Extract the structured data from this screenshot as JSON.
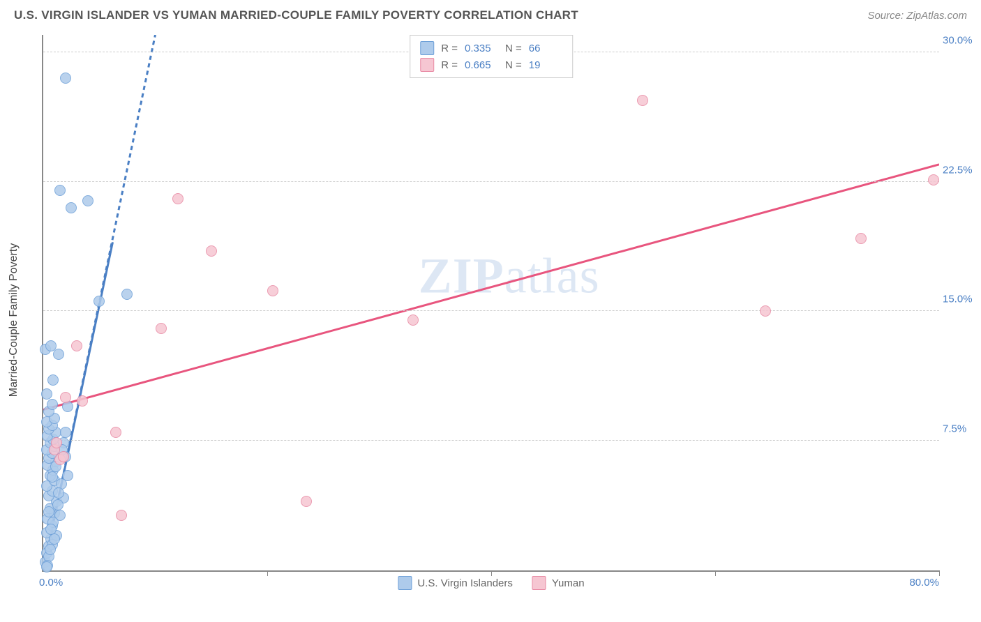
{
  "title": "U.S. VIRGIN ISLANDER VS YUMAN MARRIED-COUPLE FAMILY POVERTY CORRELATION CHART",
  "source": "Source: ZipAtlas.com",
  "ylabel": "Married-Couple Family Poverty",
  "watermark_a": "ZIP",
  "watermark_b": "atlas",
  "chart": {
    "type": "scatter",
    "xlim": [
      0,
      80
    ],
    "ylim": [
      0,
      31
    ],
    "xticks_label_left": "0.0%",
    "xticks_label_right": "80.0%",
    "xticks_marks": [
      20,
      40,
      60,
      80
    ],
    "yticks": [
      7.5,
      15.0,
      22.5,
      30.0
    ],
    "ytick_labels": [
      "7.5%",
      "15.0%",
      "22.5%",
      "30.0%"
    ],
    "grid_color": "#cccccc",
    "series": [
      {
        "name": "U.S. Virgin Islanders",
        "color_fill": "#aecbeb",
        "color_stroke": "#6ea0d8",
        "marker_size": 14,
        "R": "0.335",
        "N": "66",
        "trend": {
          "x1": 0,
          "y1": 0,
          "x2": 10,
          "y2": 31,
          "dash": true,
          "solid_end_x": 6.2,
          "solid_end_y": 19,
          "color": "#4a7fc4",
          "width": 3
        },
        "points": [
          [
            0.2,
            0.5
          ],
          [
            0.3,
            1.0
          ],
          [
            0.5,
            1.4
          ],
          [
            0.7,
            1.8
          ],
          [
            0.3,
            2.2
          ],
          [
            0.8,
            2.6
          ],
          [
            0.4,
            3.0
          ],
          [
            1.0,
            3.3
          ],
          [
            0.6,
            3.6
          ],
          [
            1.2,
            4.0
          ],
          [
            0.5,
            4.3
          ],
          [
            0.8,
            4.6
          ],
          [
            0.3,
            4.9
          ],
          [
            1.0,
            5.2
          ],
          [
            0.6,
            5.5
          ],
          [
            0.9,
            5.8
          ],
          [
            0.4,
            6.1
          ],
          [
            1.1,
            6.3
          ],
          [
            0.5,
            6.5
          ],
          [
            0.8,
            6.8
          ],
          [
            0.3,
            7.0
          ],
          [
            1.0,
            7.2
          ],
          [
            0.6,
            7.4
          ],
          [
            0.9,
            7.6
          ],
          [
            0.4,
            7.8
          ],
          [
            1.1,
            8.0
          ],
          [
            0.5,
            8.2
          ],
          [
            0.8,
            8.4
          ],
          [
            0.3,
            8.6
          ],
          [
            1.0,
            8.8
          ],
          [
            0.5,
            9.2
          ],
          [
            0.8,
            9.6
          ],
          [
            0.3,
            10.2
          ],
          [
            0.9,
            11.0
          ],
          [
            1.4,
            12.5
          ],
          [
            0.2,
            12.8
          ],
          [
            0.7,
            13.0
          ],
          [
            1.8,
            7.4
          ],
          [
            2.2,
            5.5
          ],
          [
            2.0,
            6.6
          ],
          [
            5.0,
            15.6
          ],
          [
            7.5,
            16.0
          ],
          [
            2.5,
            21.0
          ],
          [
            4.0,
            21.4
          ],
          [
            1.5,
            22.0
          ],
          [
            2.0,
            28.5
          ],
          [
            0.5,
            0.8
          ],
          [
            1.2,
            2.0
          ],
          [
            0.8,
            1.5
          ],
          [
            1.5,
            3.2
          ],
          [
            0.4,
            0.3
          ],
          [
            0.6,
            1.2
          ],
          [
            1.8,
            4.2
          ],
          [
            0.9,
            2.8
          ],
          [
            1.3,
            3.8
          ],
          [
            0.7,
            2.4
          ],
          [
            1.6,
            5.0
          ],
          [
            2.0,
            8.0
          ],
          [
            0.3,
            0.2
          ],
          [
            1.0,
            1.8
          ],
          [
            1.4,
            4.5
          ],
          [
            0.5,
            3.4
          ],
          [
            1.1,
            6.0
          ],
          [
            0.8,
            5.4
          ],
          [
            1.7,
            7.0
          ],
          [
            2.2,
            9.5
          ]
        ]
      },
      {
        "name": "Yuman",
        "color_fill": "#f6c6d2",
        "color_stroke": "#e88aa4",
        "marker_size": 14,
        "R": "0.665",
        "N": "19",
        "trend": {
          "x1": 0,
          "y1": 9.3,
          "x2": 80,
          "y2": 23.5,
          "dash": false,
          "color": "#e8557e",
          "width": 3
        },
        "points": [
          [
            1.5,
            6.4
          ],
          [
            1.0,
            7.0
          ],
          [
            1.2,
            7.4
          ],
          [
            2.0,
            10.0
          ],
          [
            3.0,
            13.0
          ],
          [
            3.5,
            9.8
          ],
          [
            6.5,
            8.0
          ],
          [
            10.5,
            14.0
          ],
          [
            12.0,
            21.5
          ],
          [
            15.0,
            18.5
          ],
          [
            20.5,
            16.2
          ],
          [
            23.5,
            4.0
          ],
          [
            7.0,
            3.2
          ],
          [
            33.0,
            14.5
          ],
          [
            53.5,
            27.2
          ],
          [
            64.5,
            15.0
          ],
          [
            73.0,
            19.2
          ],
          [
            79.5,
            22.6
          ],
          [
            1.8,
            6.6
          ]
        ]
      }
    ]
  }
}
